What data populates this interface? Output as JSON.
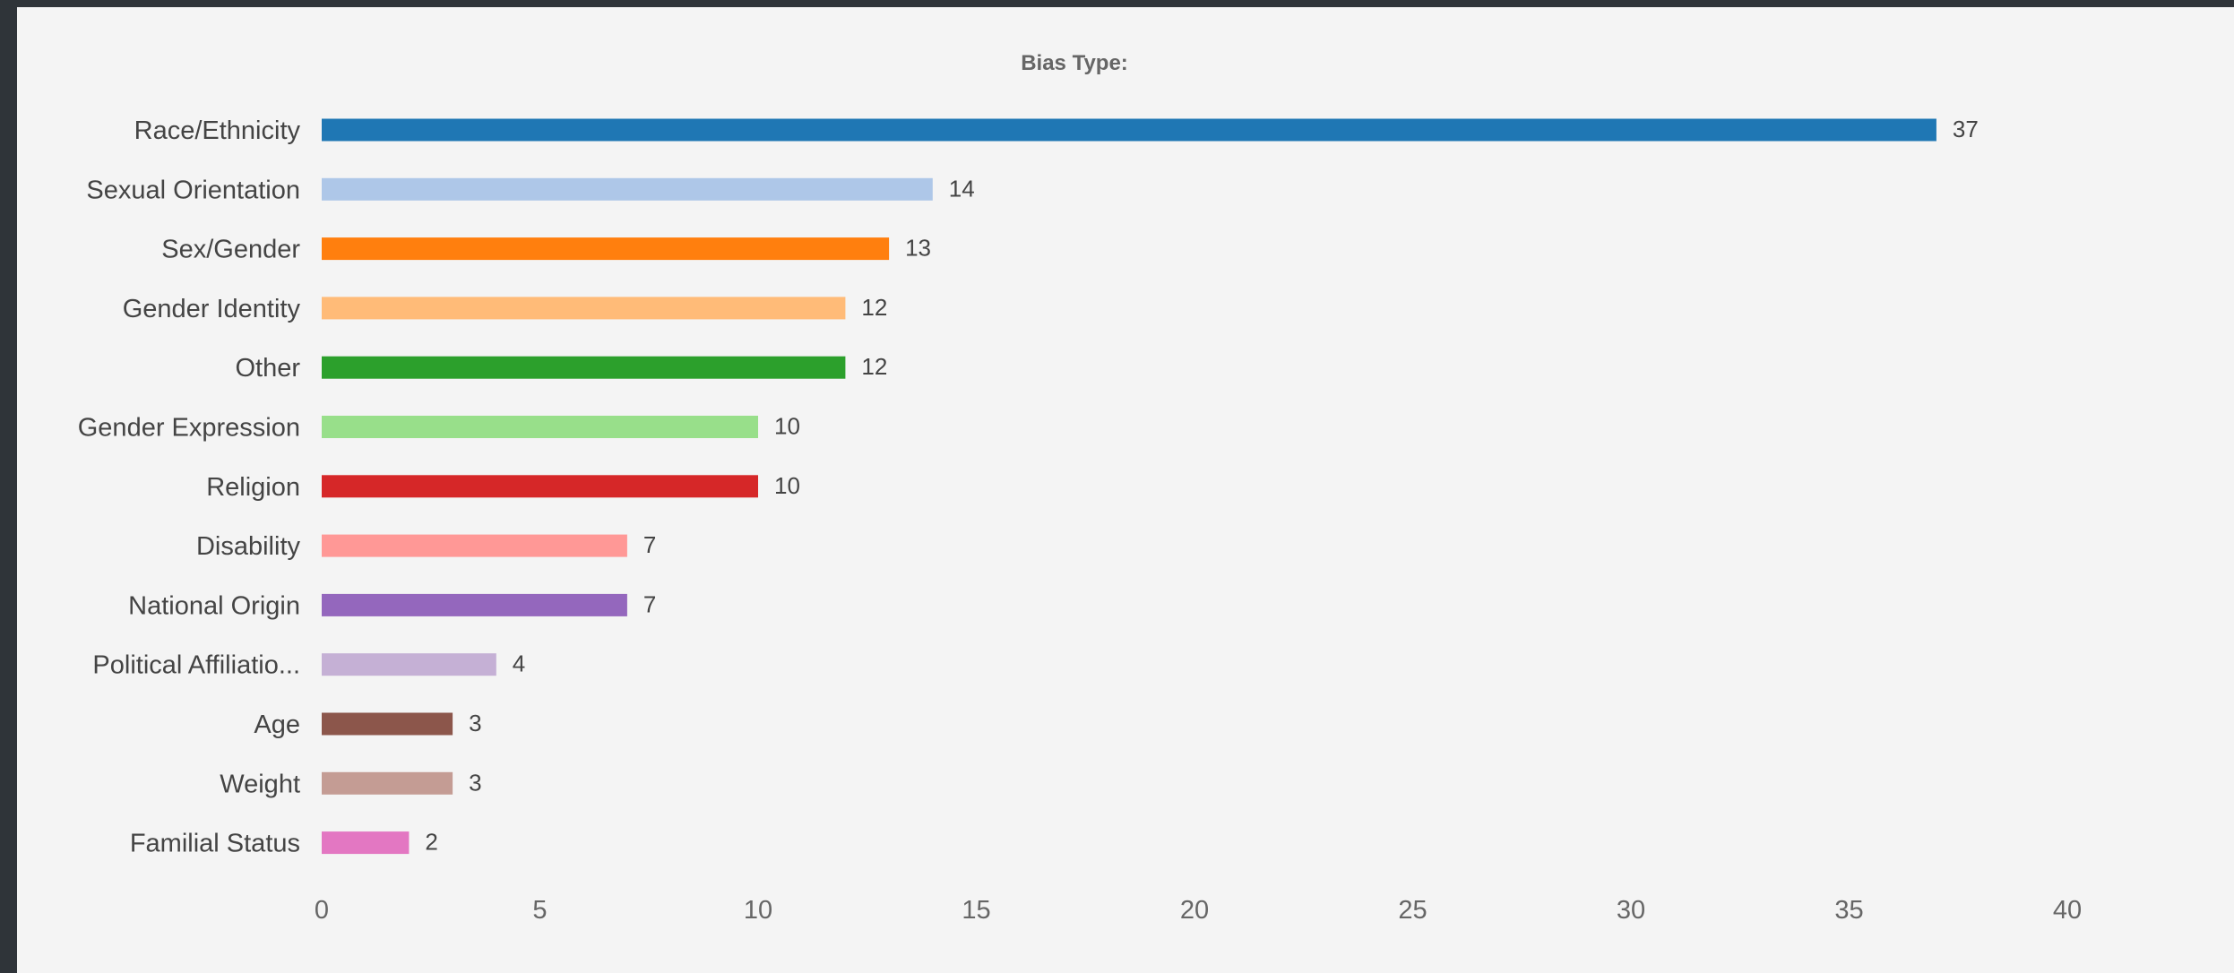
{
  "chart_data": {
    "type": "bar",
    "orientation": "horizontal",
    "title": "Bias Type:",
    "categories": [
      "Race/Ethnicity",
      "Sexual Orientation",
      "Sex/Gender",
      "Gender Identity",
      "Other",
      "Gender Expression",
      "Religion",
      "Disability",
      "National Origin",
      "Political Affiliatio...",
      "Age",
      "Weight",
      "Familial Status"
    ],
    "values": [
      37,
      14,
      13,
      12,
      12,
      10,
      10,
      7,
      7,
      4,
      3,
      3,
      2
    ],
    "colors": [
      "#1f77b4",
      "#aec7e8",
      "#ff7f0e",
      "#ffbb78",
      "#2ca02c",
      "#98df8a",
      "#d62728",
      "#ff9896",
      "#9467bd",
      "#c5b0d5",
      "#8c564b",
      "#c49c94",
      "#e377c2"
    ],
    "xlim": [
      0,
      40
    ],
    "xticks": [
      0,
      5,
      10,
      15,
      20,
      25,
      30,
      35,
      40
    ],
    "grid": false,
    "legend": "none"
  }
}
